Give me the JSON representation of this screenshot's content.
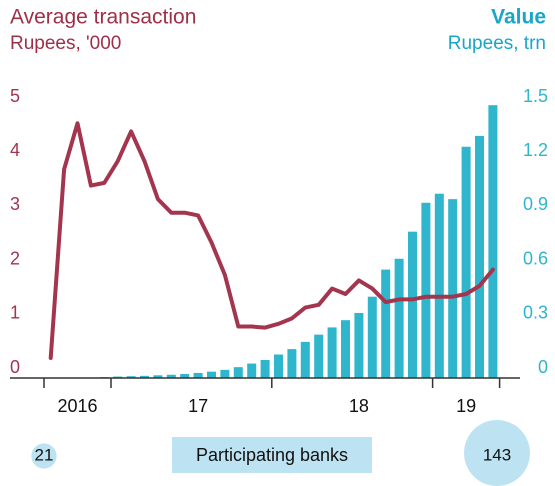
{
  "chart_data": {
    "type": "bar-line",
    "left_title": "Average transaction",
    "left_subtitle": "Rupees, '000",
    "right_title": "Value",
    "right_subtitle": "Rupees, trn",
    "categories": [
      null,
      null,
      "2016",
      null,
      null,
      null,
      null,
      null,
      null,
      null,
      null,
      "17",
      null,
      null,
      null,
      null,
      null,
      null,
      null,
      null,
      null,
      null,
      null,
      "18",
      null,
      null,
      null,
      null,
      null,
      null,
      null,
      "19",
      null,
      null
    ],
    "series": [
      {
        "name": "Value",
        "color": "#2fb6cc",
        "axis": "y2",
        "kind": "bar",
        "values": [
          0,
          0,
          0,
          0.002,
          0.005,
          0.008,
          0.01,
          0.012,
          0.015,
          0.018,
          0.022,
          0.028,
          0.035,
          0.045,
          0.06,
          0.08,
          0.1,
          0.13,
          0.16,
          0.2,
          0.24,
          0.28,
          0.32,
          0.36,
          0.45,
          0.6,
          0.66,
          0.81,
          0.97,
          1.02,
          0.99,
          1.28,
          1.34,
          1.51
        ]
      },
      {
        "name": "Average transaction",
        "color": "#a3354f",
        "axis": "y",
        "kind": "line",
        "values": [
          0.37,
          3.85,
          4.7,
          3.55,
          3.6,
          4.0,
          4.55,
          4.0,
          3.3,
          3.05,
          3.05,
          3.0,
          2.5,
          1.9,
          0.95,
          0.95,
          0.93,
          1.0,
          1.1,
          1.3,
          1.35,
          1.65,
          1.55,
          1.8,
          1.65,
          1.4,
          1.45,
          1.45,
          1.5,
          1.5,
          1.5,
          1.55,
          1.7,
          2.0
        ]
      }
    ],
    "ylim": [
      0,
      5
    ],
    "yticks": [
      0,
      1,
      2,
      3,
      4,
      5
    ],
    "y2lim": [
      0,
      1.5
    ],
    "y2ticks": [
      0,
      0.3,
      0.6,
      0.9,
      1.2,
      1.5
    ],
    "year_starts": [
      0,
      5,
      17,
      29,
      34
    ],
    "banks": {
      "label": "Participating banks",
      "start": 21,
      "end": 143
    }
  }
}
